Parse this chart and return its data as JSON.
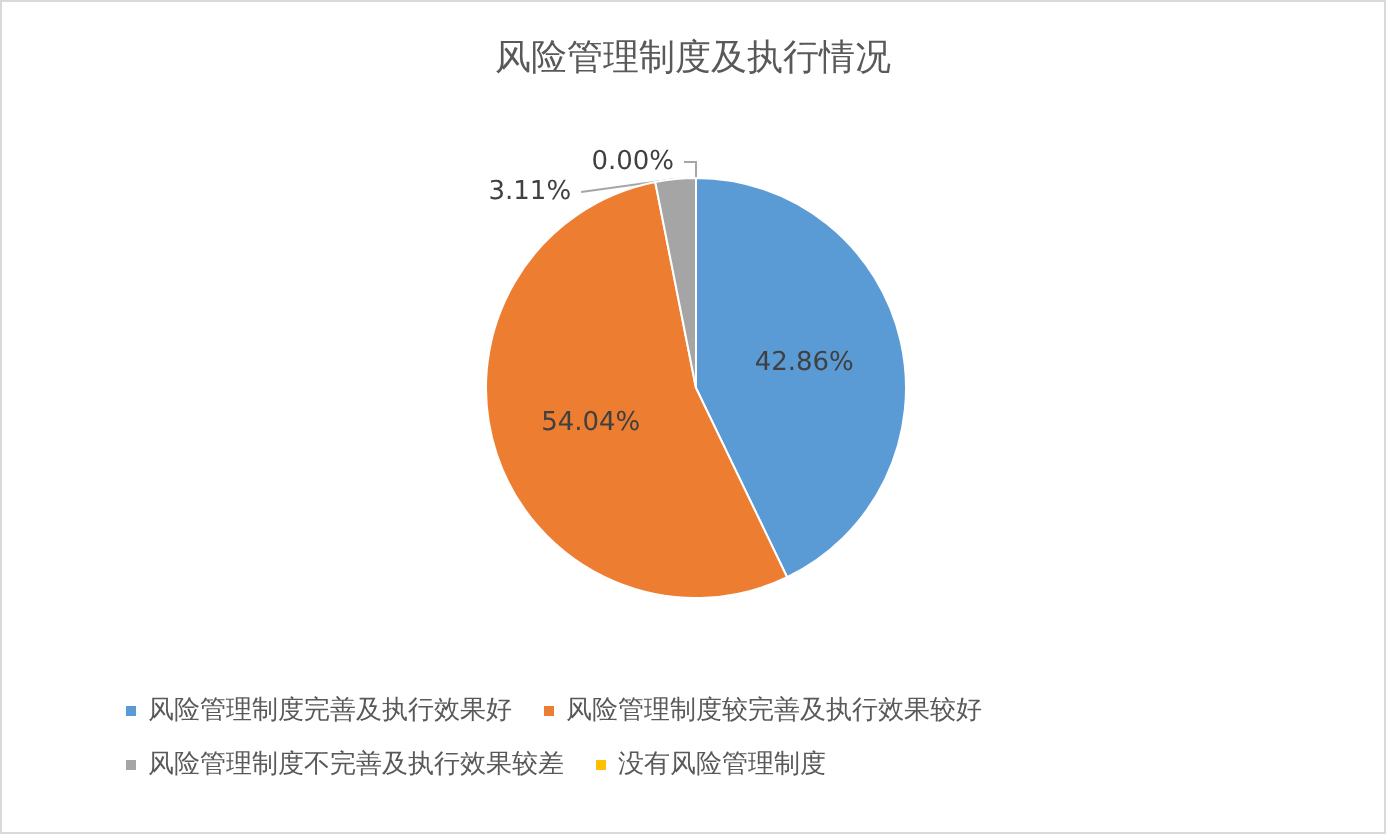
{
  "chart_data": {
    "type": "pie",
    "title": "风险管理制度及执行情况",
    "categories": [
      "风险管理制度完善及执行效果好",
      "风险管理制度较完善及执行效果较好",
      "风险管理制度不完善及执行效果较差",
      "没有风险管理制度"
    ],
    "values": [
      42.86,
      54.04,
      3.11,
      0.0
    ],
    "colors": [
      "#5b9bd5",
      "#ed7d31",
      "#a5a5a5",
      "#ffc000"
    ],
    "value_labels": [
      "42.86%",
      "54.04%",
      "3.11%",
      "0.00%"
    ],
    "legend": "bottom"
  }
}
